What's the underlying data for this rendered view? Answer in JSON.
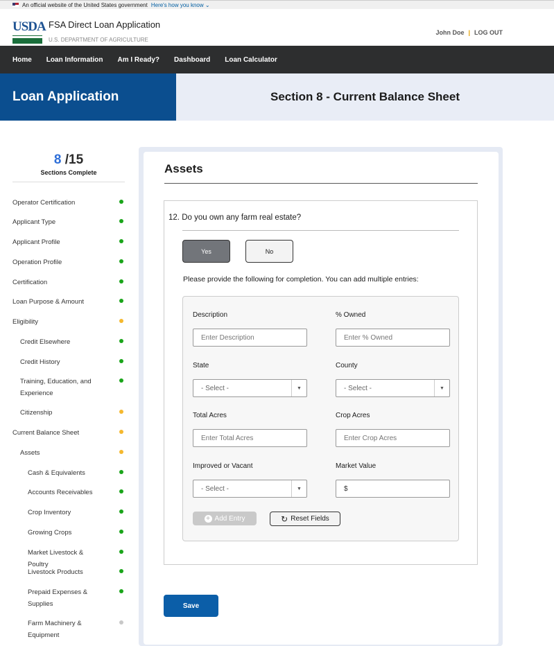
{
  "banner": {
    "text": "An official website of the United States government",
    "link": "Here's how you know"
  },
  "header": {
    "logo": "USDA",
    "app_name": "FSA Direct Loan Application",
    "dept": "U.S. DEPARTMENT OF AGRICULTURE",
    "user": "John Doe",
    "logout": "LOG OUT"
  },
  "nav": [
    "Home",
    "Loan Information",
    "Am I Ready?",
    "Dashboard",
    "Loan Calculator"
  ],
  "band": {
    "left": "Loan Application",
    "right": "Section 8 - Current Balance Sheet"
  },
  "progress": {
    "done": "8",
    "total": "/15",
    "label": "Sections Complete"
  },
  "colors": {
    "complete": "#1aa51a",
    "in_progress": "#f5b82e",
    "not_started": "#c8c8c8",
    "primary": "#0b5ea8"
  },
  "sidebar": [
    {
      "label": "Operator Certification",
      "status": "complete",
      "level": 0
    },
    {
      "label": "Applicant Type",
      "status": "complete",
      "level": 0
    },
    {
      "label": "Applicant Profile",
      "status": "complete",
      "level": 0
    },
    {
      "label": "Operation Profile",
      "status": "complete",
      "level": 0
    },
    {
      "label": "Certification",
      "status": "complete",
      "level": 0
    },
    {
      "label": "Loan Purpose & Amount",
      "status": "complete",
      "level": 0
    },
    {
      "label": "Eligibility",
      "status": "in_progress",
      "level": 0
    },
    {
      "label": "Credit Elsewhere",
      "status": "complete",
      "level": 1
    },
    {
      "label": "Credit History",
      "status": "complete",
      "level": 1
    },
    {
      "label": "Training, Education, and Experience",
      "status": "complete",
      "level": 1
    },
    {
      "label": "Citizenship",
      "status": "in_progress",
      "level": 1
    },
    {
      "label": "Current Balance Sheet",
      "status": "in_progress",
      "level": 0
    },
    {
      "label": "Assets",
      "status": "in_progress",
      "level": 1
    },
    {
      "label": "Cash & Equivalents",
      "status": "complete",
      "level": 2
    },
    {
      "label": "Accounts Receivables",
      "status": "complete",
      "level": 2
    },
    {
      "label": "Crop Inventory",
      "status": "complete",
      "level": 2
    },
    {
      "label": "Growing Crops",
      "status": "complete",
      "level": 2
    },
    {
      "label": "Market Livestock & Poultry",
      "status": "complete",
      "level": 2
    },
    {
      "label": "Livestock Products",
      "status": "complete",
      "level": 2
    },
    {
      "label": "Prepaid Expenses & Supplies",
      "status": "complete",
      "level": 2
    },
    {
      "label": "Farm Machinery & Equipment",
      "status": "not_started",
      "level": 2
    }
  ],
  "main": {
    "title": "Assets",
    "question_num": "12.",
    "question": "Do you own any farm real estate?",
    "yes": "Yes",
    "no": "No",
    "selected": "Yes",
    "instructions": "Please provide the following for completion. You can add multiple entries:",
    "fields": {
      "description": {
        "label": "Description",
        "placeholder": "Enter Description"
      },
      "owned": {
        "label": "% Owned",
        "placeholder": "Enter % Owned"
      },
      "state": {
        "label": "State",
        "value": "- Select -"
      },
      "county": {
        "label": "County",
        "value": "- Select -"
      },
      "total_acres": {
        "label": "Total Acres",
        "placeholder": "Enter Total Acres"
      },
      "crop_acres": {
        "label": "Crop Acres",
        "placeholder": "Enter Crop Acres"
      },
      "improved": {
        "label": "Improved or Vacant",
        "value": "- Select -"
      },
      "market_value": {
        "label": "Market Value",
        "value": "$"
      }
    },
    "add_entry": "Add Entry",
    "reset": "Reset Fields",
    "save": "Save"
  }
}
